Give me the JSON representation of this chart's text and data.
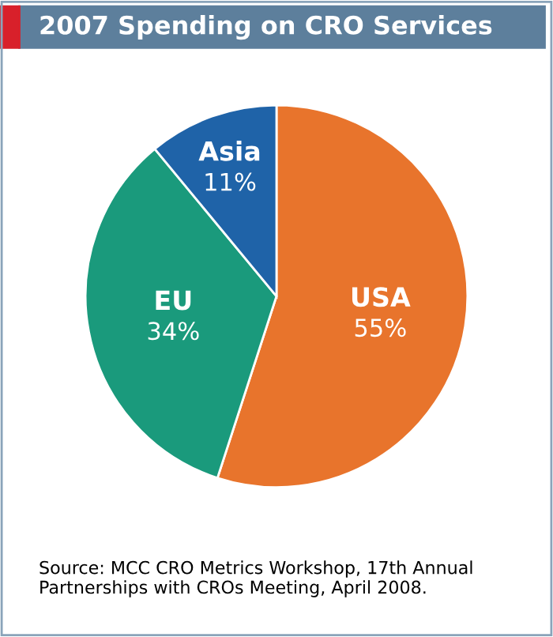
{
  "chart_data": {
    "type": "pie",
    "title": "2007 Spending on CRO Services",
    "categories": [
      "USA",
      "EU",
      "Asia"
    ],
    "values": [
      55,
      34,
      11
    ],
    "value_labels": [
      "55%",
      "34%",
      "11%"
    ],
    "colors": [
      "#e8742c",
      "#1a9a7c",
      "#1f63a8"
    ],
    "legend": false,
    "annotations": [
      "Source: MCC CRO Metrics Workshop, 17th Annual Partnerships with CROs Meeting, April 2008."
    ]
  }
}
